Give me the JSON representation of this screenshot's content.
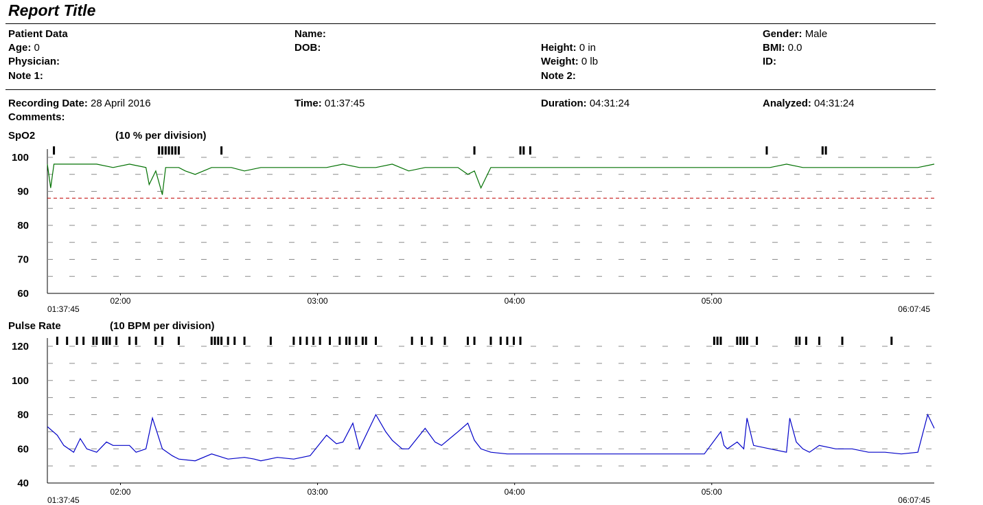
{
  "report": {
    "title": "Report Title"
  },
  "patient": {
    "section_label": "Patient Data",
    "age_label": "Age:",
    "age": "0",
    "physician_label": "Physician:",
    "note1_label": "Note 1:",
    "name_label": "Name:",
    "dob_label": "DOB:",
    "height_label": "Height:",
    "height": "0 in",
    "weight_label": "Weight:",
    "weight": "0 lb",
    "note2_label": "Note 2:",
    "gender_label": "Gender:",
    "gender": "Male",
    "bmi_label": "BMI:",
    "bmi": "0.0",
    "id_label": "ID:"
  },
  "recording": {
    "date_label": "Recording Date:",
    "date": "28 April 2016",
    "time_label": "Time:",
    "time": "01:37:45",
    "duration_label": "Duration:",
    "duration": "04:31:24",
    "analyzed_label": "Analyzed:",
    "analyzed": "04:31:24",
    "comments_label": "Comments:"
  },
  "chart_data": [
    {
      "type": "line",
      "name": "SpO2",
      "title": "SpO2",
      "division_label": "(10 %  per division)",
      "x_start_label": "01:37:45",
      "x_end_label": "06:07:45",
      "x_ticks": [
        "02:00",
        "03:00",
        "04:00",
        "05:00"
      ],
      "y_ticks": [
        60,
        70,
        80,
        90,
        100
      ],
      "ylim": [
        60,
        100
      ],
      "threshold": 88,
      "line_color": "#007000",
      "threshold_color": "#c00000",
      "x_minutes": [
        0,
        1,
        2,
        5,
        10,
        15,
        20,
        25,
        30,
        31,
        33,
        35,
        36,
        38,
        40,
        42,
        45,
        50,
        52,
        54,
        56,
        60,
        65,
        70,
        75,
        80,
        85,
        90,
        95,
        100,
        105,
        110,
        115,
        120,
        125,
        128,
        130,
        132,
        135,
        138,
        140,
        145,
        150,
        155,
        160,
        170,
        180,
        190,
        200,
        205,
        210,
        215,
        220,
        225,
        230,
        235,
        240,
        245,
        250,
        255,
        260,
        265,
        270
      ],
      "values": [
        98,
        91,
        98,
        98,
        98,
        98,
        97,
        98,
        97,
        92,
        96,
        89,
        97,
        97,
        97,
        96,
        95,
        97,
        97,
        97,
        97,
        96,
        97,
        97,
        97,
        97,
        97,
        98,
        97,
        97,
        98,
        96,
        97,
        97,
        97,
        95,
        96,
        91,
        97,
        97,
        97,
        97,
        97,
        97,
        97,
        97,
        97,
        97,
        97,
        97,
        97,
        97,
        97,
        98,
        97,
        97,
        97,
        97,
        97,
        97,
        97,
        97,
        98
      ],
      "event_marks_minutes": [
        2,
        34,
        35,
        36,
        37,
        38,
        39,
        40,
        53,
        130,
        144,
        145,
        147,
        219,
        236,
        237
      ]
    },
    {
      "type": "line",
      "name": "Pulse Rate",
      "title": "Pulse Rate",
      "division_label": "(10 BPM per division)",
      "x_start_label": "01:37:45",
      "x_end_label": "06:07:45",
      "x_ticks": [
        "02:00",
        "03:00",
        "04:00",
        "05:00"
      ],
      "y_ticks": [
        40,
        60,
        80,
        100,
        120
      ],
      "ylim": [
        40,
        120
      ],
      "line_color": "#0000c8",
      "x_minutes": [
        0,
        3,
        5,
        8,
        10,
        12,
        15,
        18,
        20,
        22,
        25,
        27,
        30,
        32,
        35,
        38,
        40,
        45,
        50,
        55,
        60,
        63,
        65,
        70,
        75,
        80,
        85,
        88,
        90,
        93,
        95,
        100,
        103,
        105,
        108,
        110,
        115,
        118,
        120,
        125,
        128,
        130,
        132,
        135,
        140,
        145,
        150,
        160,
        170,
        180,
        190,
        200,
        205,
        206,
        207,
        210,
        212,
        213,
        215,
        220,
        225,
        226,
        228,
        230,
        232,
        235,
        240,
        245,
        250,
        255,
        260,
        265,
        268,
        270
      ],
      "values": [
        73,
        68,
        62,
        58,
        66,
        60,
        58,
        64,
        62,
        62,
        62,
        58,
        60,
        78,
        60,
        56,
        54,
        53,
        57,
        54,
        55,
        54,
        53,
        55,
        54,
        56,
        68,
        63,
        64,
        75,
        60,
        80,
        70,
        65,
        60,
        60,
        72,
        64,
        62,
        70,
        75,
        65,
        60,
        58,
        57,
        57,
        57,
        57,
        57,
        57,
        57,
        57,
        70,
        62,
        60,
        64,
        60,
        78,
        62,
        60,
        58,
        78,
        64,
        60,
        58,
        62,
        60,
        60,
        58,
        58,
        57,
        58,
        80,
        72
      ],
      "event_marks_minutes": [
        3,
        6,
        9,
        11,
        14,
        15,
        17,
        18,
        19,
        21,
        25,
        27,
        33,
        35,
        40,
        50,
        51,
        52,
        53,
        55,
        57,
        60,
        68,
        75,
        77,
        79,
        81,
        83,
        86,
        89,
        91,
        92,
        94,
        96,
        97,
        100,
        111,
        114,
        117,
        121,
        128,
        130,
        135,
        138,
        140,
        142,
        144,
        203,
        204,
        205,
        210,
        211,
        212,
        213,
        216,
        228,
        229,
        231,
        235,
        242,
        257
      ]
    }
  ]
}
